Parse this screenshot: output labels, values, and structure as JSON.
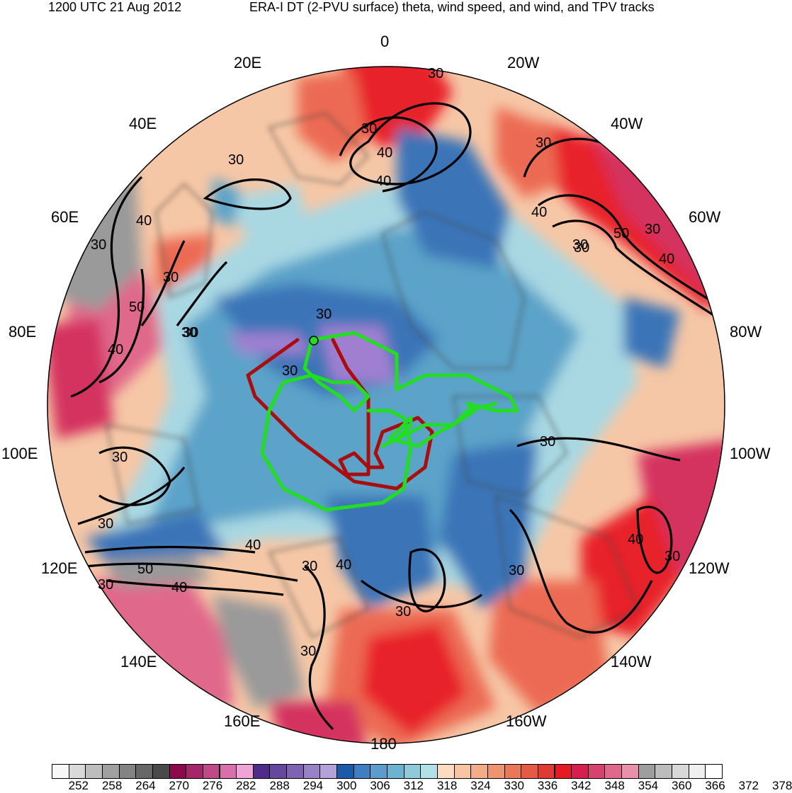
{
  "header": {
    "left": "1200 UTC 21 Aug 2012",
    "right": "ERA-I DT (2-PVU surface) theta, wind speed, and wind, and TPV tracks"
  },
  "map": {
    "projection": "north-polar-stereographic",
    "longitude_labels": [
      "0",
      "20W",
      "40W",
      "60W",
      "80W",
      "100W",
      "120W",
      "140W",
      "160W",
      "180",
      "160E",
      "140E",
      "120E",
      "100E",
      "80E",
      "60E",
      "40E",
      "20E"
    ],
    "contour_labels": [
      "30",
      "30",
      "40",
      "40",
      "30",
      "40",
      "30",
      "40",
      "50",
      "30",
      "40",
      "30",
      "30",
      "50",
      "30",
      "40",
      "40",
      "30",
      "30",
      "30",
      "30",
      "30",
      "30",
      "30",
      "40",
      "50",
      "30",
      "40",
      "30",
      "30",
      "30",
      "30",
      "30",
      "40",
      "30"
    ],
    "colors": {
      "background": "#f6c7a6",
      "warm": "#ec6a53",
      "hot": "#e8202a",
      "magenta": "#d4335f",
      "pink": "#e0688b",
      "blue_light": "#a9d8e3",
      "blue_mid": "#5ba3c9",
      "blue_dark": "#3a75b8",
      "purple": "#a07fd1",
      "gray": "#9a9a9a",
      "track_green": "#22dd22",
      "track_red": "#a80e0e",
      "contour": "#000000",
      "coast": "#444444"
    }
  },
  "colorbar": {
    "labels": [
      "252",
      "258",
      "264",
      "270",
      "276",
      "282",
      "288",
      "294",
      "300",
      "306",
      "312",
      "318",
      "324",
      "330",
      "336",
      "342",
      "348",
      "354",
      "360",
      "366",
      "372",
      "378"
    ],
    "colors": [
      "#f7f7f7",
      "#d9d9d9",
      "#bdbdbd",
      "#a0a0a0",
      "#838383",
      "#676767",
      "#4a4a4a",
      "#8b0a4b",
      "#a6266b",
      "#c04989",
      "#d870ad",
      "#f0a3d6",
      "#4f2c8a",
      "#66479e",
      "#7e63b3",
      "#9881c6",
      "#b2a2d8",
      "#1a5aa8",
      "#3f7ec0",
      "#5c9ccd",
      "#6cb3d2",
      "#8ecadb",
      "#b3e0e8",
      "#fbdcc0",
      "#f7c5a1",
      "#f2ac87",
      "#ee946f",
      "#ea7858",
      "#e45a45",
      "#df3a33",
      "#e61a23",
      "#d51f4e",
      "#d64371",
      "#e0688b",
      "#e991ab",
      "#9e9e9e",
      "#bcbcbc",
      "#d8d8d8",
      "#efefef",
      "#ffffff"
    ]
  }
}
